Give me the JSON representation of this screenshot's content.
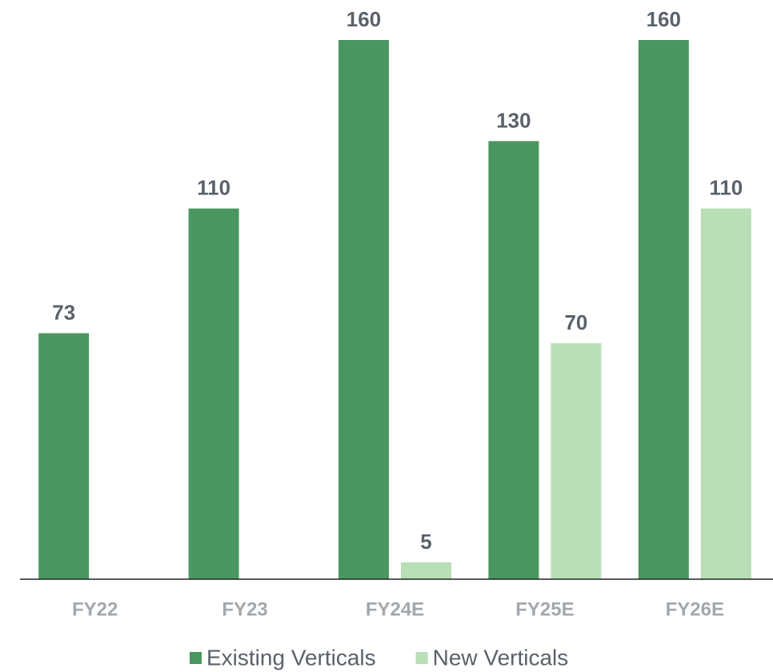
{
  "chart_data": {
    "type": "bar",
    "categories": [
      "FY22",
      "FY23",
      "FY24E",
      "FY25E",
      "FY26E"
    ],
    "series": [
      {
        "name": "Existing Verticals",
        "color": "#4a9660",
        "values": [
          73,
          110,
          160,
          130,
          160
        ]
      },
      {
        "name": "New Verticals",
        "color": "#b8dfb6",
        "values": [
          null,
          null,
          5,
          70,
          110
        ]
      }
    ],
    "ylim": [
      0,
      160
    ],
    "legend": "bottom"
  }
}
